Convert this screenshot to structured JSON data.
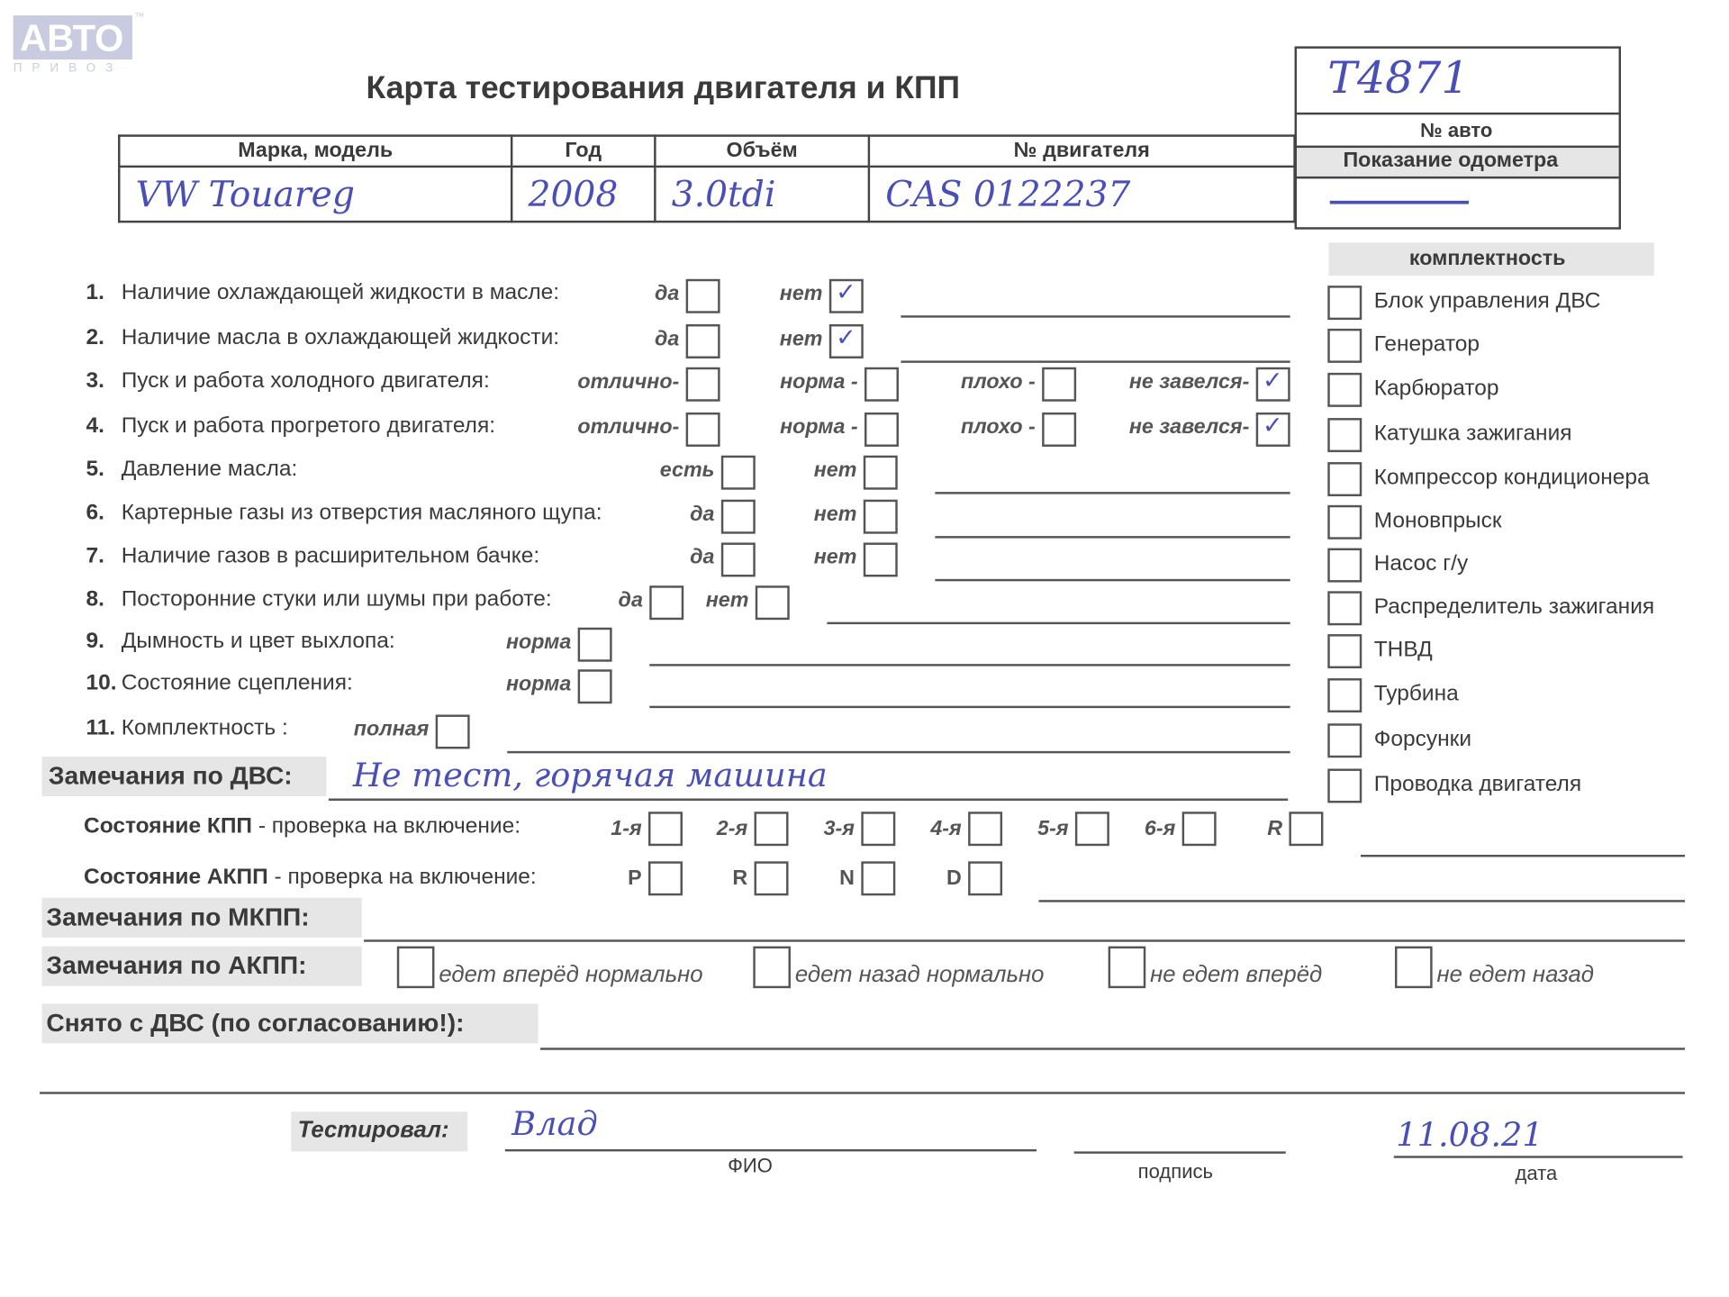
{
  "logo": {
    "brand": "АВТО",
    "sub": "ПРИВОЗ",
    "tm": "™"
  },
  "title": "Карта тестирования двигателя  и КПП",
  "vehicle": {
    "headers": [
      "Марка, модель",
      "Год",
      "Объём",
      "№ двигателя"
    ],
    "values": [
      "VW Touareg",
      "2008",
      "3.0tdi",
      "CAS 0122237"
    ],
    "plate_label": "№ авто",
    "plate_value": "Т4871",
    "odometer_label": "Показание одометра",
    "odometer_value": "—"
  },
  "questions": [
    {
      "num": "1.",
      "text": "Наличие охлаждающей жидкости в масле:",
      "options": [
        {
          "label": "да",
          "checked": false
        },
        {
          "label": "нет",
          "checked": true
        }
      ]
    },
    {
      "num": "2.",
      "text": "Наличие масла в охлаждающей жидкости:",
      "options": [
        {
          "label": "да",
          "checked": false
        },
        {
          "label": "нет",
          "checked": true
        }
      ]
    },
    {
      "num": "3.",
      "text": "Пуск и работа холодного двигателя:",
      "options": [
        {
          "label": "отлично-",
          "checked": false
        },
        {
          "label": "норма -",
          "checked": false
        },
        {
          "label": "плохо -",
          "checked": false
        },
        {
          "label": "не завелся-",
          "checked": true
        }
      ]
    },
    {
      "num": "4.",
      "text": "Пуск и работа прогретого двигателя:",
      "options": [
        {
          "label": "отлично-",
          "checked": false
        },
        {
          "label": "норма -",
          "checked": false
        },
        {
          "label": "плохо -",
          "checked": false
        },
        {
          "label": "не завелся-",
          "checked": true
        }
      ]
    },
    {
      "num": "5.",
      "text": "Давление масла:",
      "options": [
        {
          "label": "есть",
          "checked": false
        },
        {
          "label": "нет",
          "checked": false
        }
      ]
    },
    {
      "num": "6.",
      "text": "Картерные газы из отверстия масляного щупа:",
      "options": [
        {
          "label": "да",
          "checked": false
        },
        {
          "label": "нет",
          "checked": false
        }
      ]
    },
    {
      "num": "7.",
      "text": "Наличие газов в расширительном бачке:",
      "options": [
        {
          "label": "да",
          "checked": false
        },
        {
          "label": "нет",
          "checked": false
        }
      ]
    },
    {
      "num": "8.",
      "text": "Посторонние стуки или шумы при работе:",
      "options": [
        {
          "label": "да",
          "checked": false
        },
        {
          "label": "нет",
          "checked": false
        }
      ]
    },
    {
      "num": "9.",
      "text": "Дымность и цвет выхлопа:",
      "options": [
        {
          "label": "норма",
          "checked": false
        }
      ]
    },
    {
      "num": "10.",
      "text": "Состояние сцепления:",
      "options": [
        {
          "label": "норма",
          "checked": false
        }
      ]
    },
    {
      "num": "11.",
      "text": "Комплектность :",
      "options": [
        {
          "label": "полная",
          "checked": false
        }
      ]
    }
  ],
  "components": {
    "title": "комплектность",
    "items": [
      "Блок управления ДВС",
      "Генератор",
      "Карбюратор",
      "Катушка зажигания",
      "Компрессор кондиционера",
      "Моновпрыск",
      "Насос г/у",
      "Распределитель зажигания",
      "ТНВД",
      "Турбина",
      "Форсунки",
      "Проводка двигателя"
    ]
  },
  "remarks_engine": {
    "label": "Замечания по ДВС:",
    "value": "Не тест, горячая машина"
  },
  "kpp": {
    "label_bold": "Состояние КПП",
    "label_rest": " - проверка на включение:",
    "gears": [
      "1-я",
      "2-я",
      "3-я",
      "4-я",
      "5-я",
      "6-я",
      "R"
    ]
  },
  "akpp": {
    "label_bold": "Состояние АКПП",
    "label_rest": " - проверка на включение:",
    "gears": [
      "P",
      "R",
      "N",
      "D"
    ]
  },
  "remarks_mkpp": {
    "label": "Замечания по МКПП:"
  },
  "remarks_akpp": {
    "label": "Замечания по АКПП:",
    "options": [
      "едет вперёд нормально",
      "едет назад нормально",
      "не едет вперёд",
      "не едет назад"
    ]
  },
  "removed": {
    "label": "Снято с ДВС (по согласованию!):"
  },
  "tested": {
    "label": "Тестировал:",
    "name": "Влад",
    "name_caption": "ФИО",
    "signature_caption": "подпись",
    "date": "11.08.21",
    "date_caption": "дата"
  },
  "colors": {
    "ink": "#4a4fb8",
    "print": "#3a3a3a",
    "shade": "#e6e6e6",
    "logo": "#c9cbe0"
  }
}
